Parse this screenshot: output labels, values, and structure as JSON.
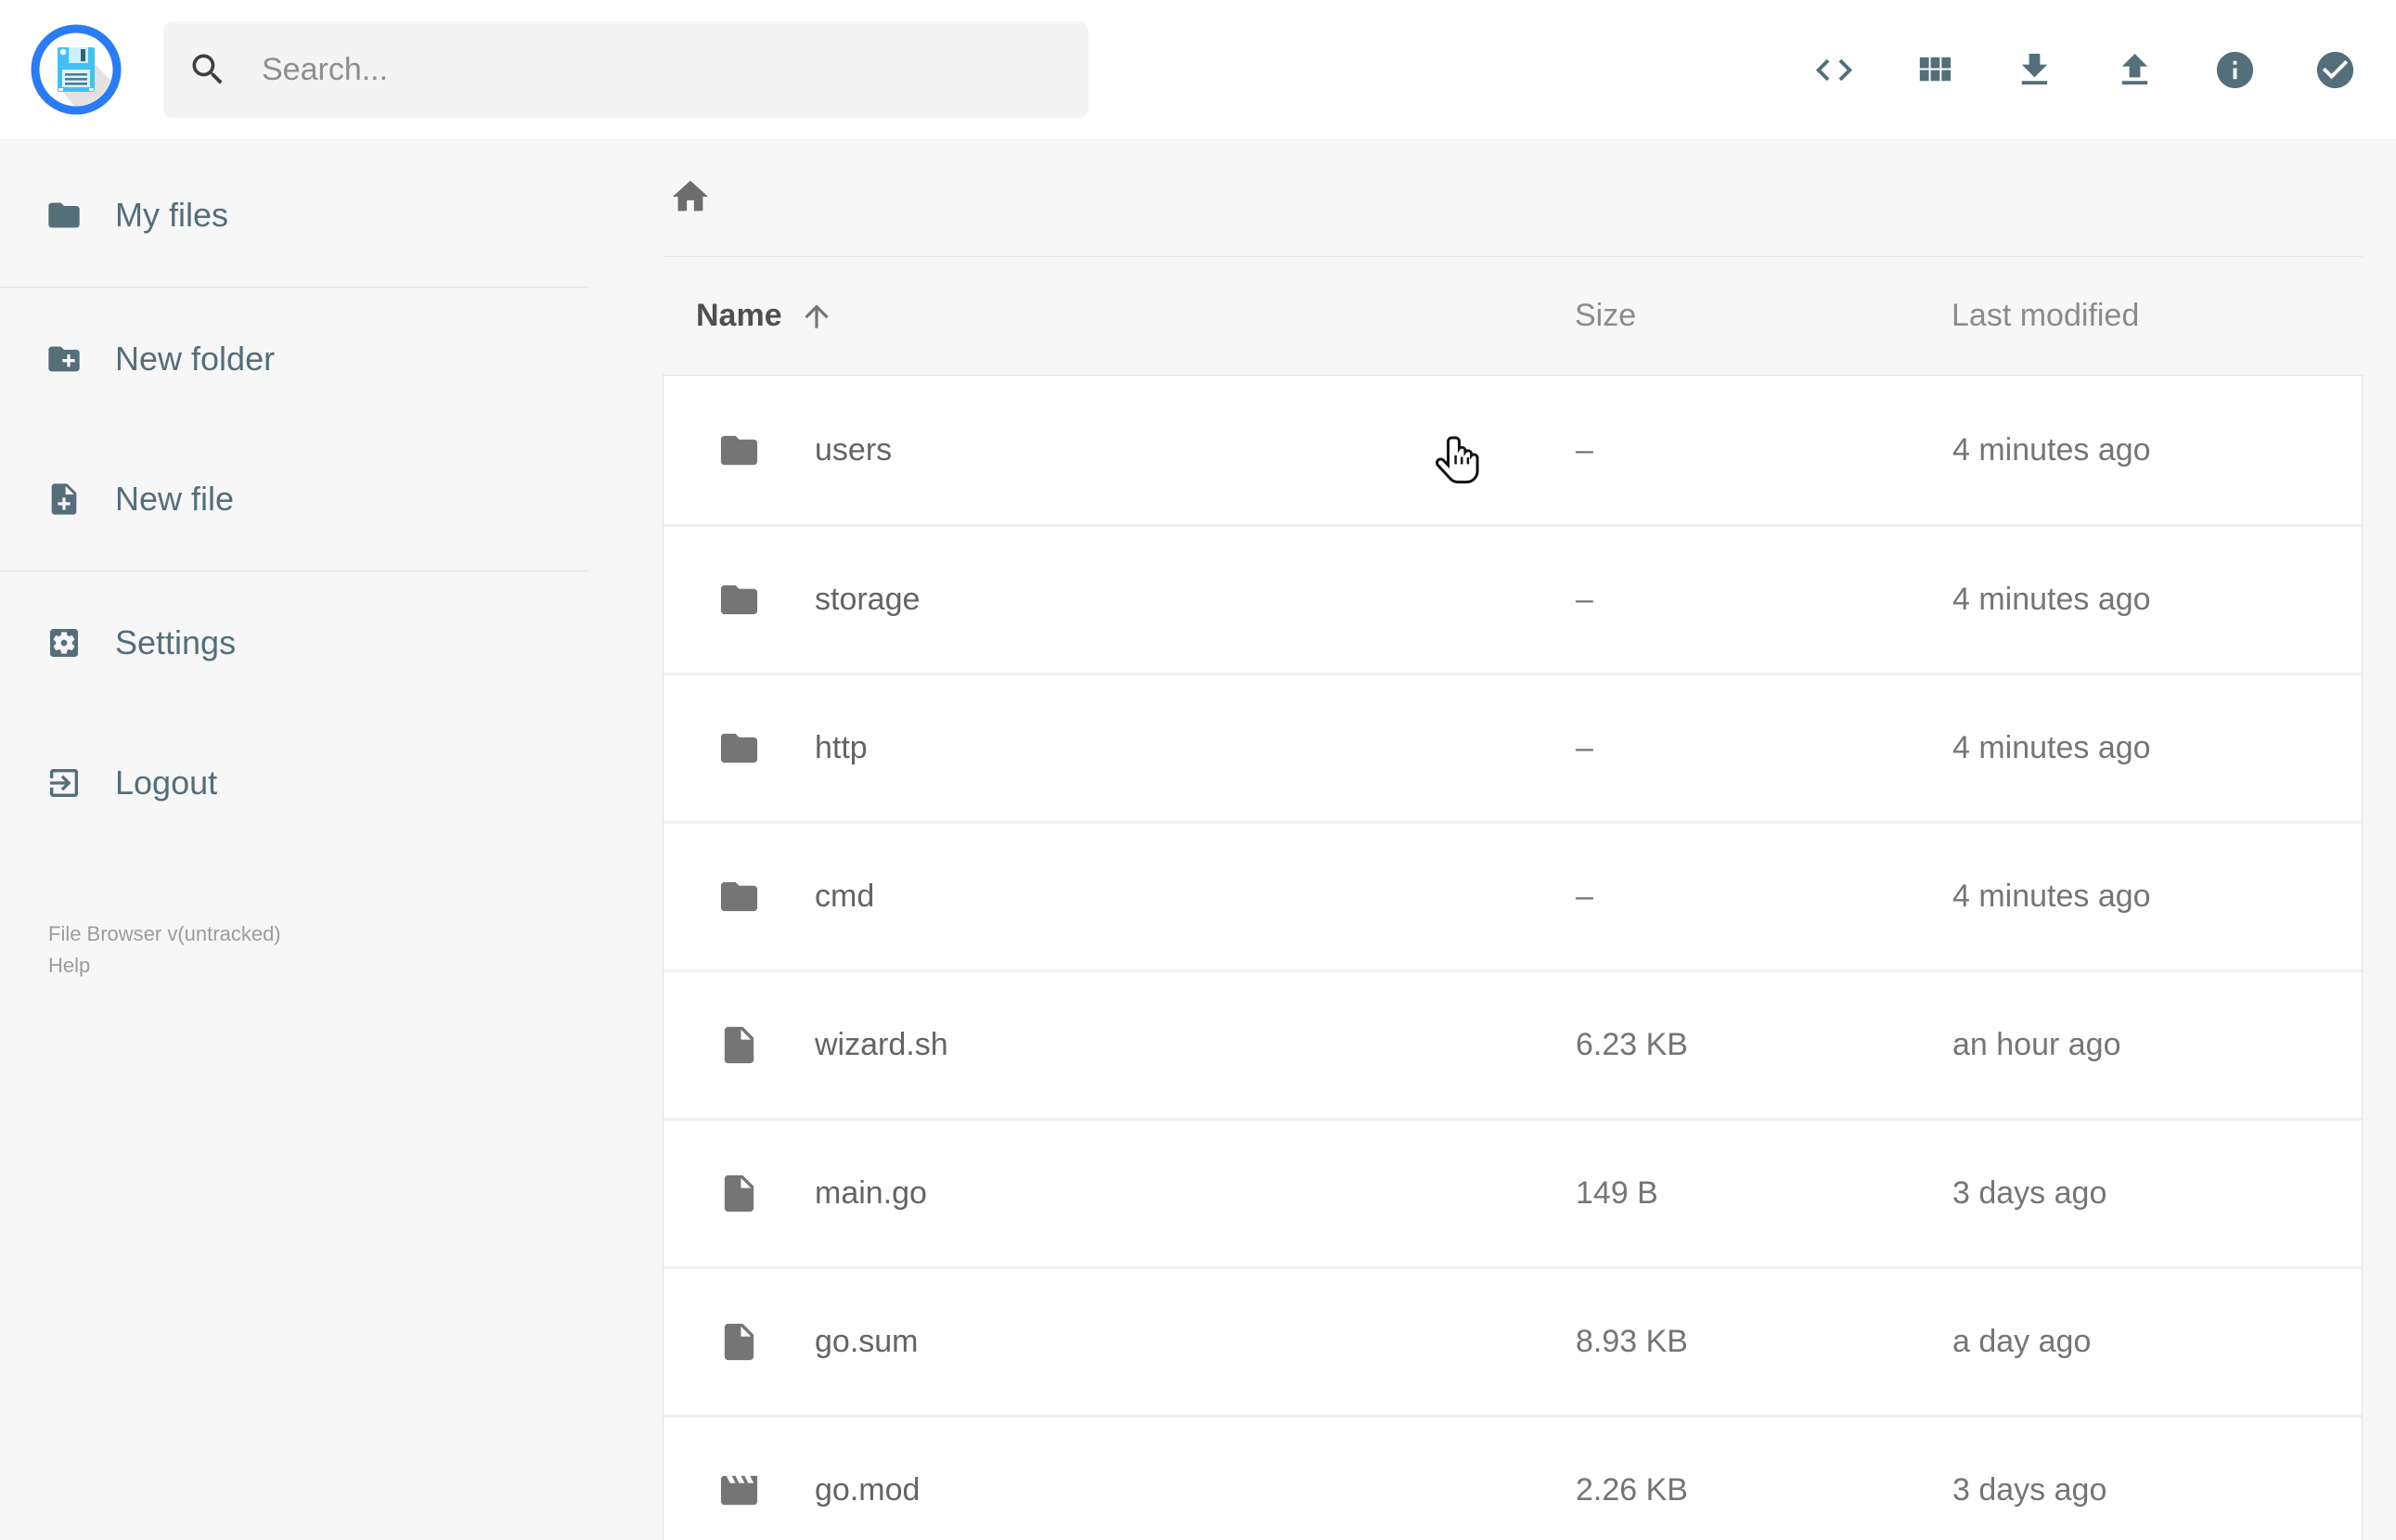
{
  "app": {
    "version_label": "File Browser v(untracked)",
    "help_label": "Help"
  },
  "header": {
    "logo_icon": "floppy-disk-logo",
    "search": {
      "placeholder": "Search...",
      "icon": "search-icon"
    },
    "actions": [
      {
        "id": "raw-view",
        "icon": "code-icon"
      },
      {
        "id": "switch-view",
        "icon": "grid-icon"
      },
      {
        "id": "download",
        "icon": "download-icon"
      },
      {
        "id": "upload",
        "icon": "upload-icon"
      },
      {
        "id": "info",
        "icon": "info-icon"
      },
      {
        "id": "select-multiple",
        "icon": "check-circle-icon"
      }
    ]
  },
  "sidebar": {
    "items": [
      {
        "id": "my-files",
        "label": "My files",
        "icon": "folder-icon"
      },
      {
        "id": "new-folder",
        "label": "New folder",
        "icon": "new-folder-icon"
      },
      {
        "id": "new-file",
        "label": "New file",
        "icon": "new-file-icon"
      },
      {
        "id": "settings",
        "label": "Settings",
        "icon": "settings-icon"
      },
      {
        "id": "logout",
        "label": "Logout",
        "icon": "logout-icon"
      }
    ]
  },
  "breadcrumb": {
    "home_icon": "home-icon"
  },
  "listing": {
    "columns": {
      "name": "Name",
      "size": "Size",
      "modified": "Last modified"
    },
    "sort": {
      "column": "name",
      "direction": "asc",
      "icon": "sort-asc-icon"
    },
    "rows": [
      {
        "type": "folder",
        "icon": "folder-icon",
        "name": "users",
        "size": "–",
        "modified": "4 minutes ago"
      },
      {
        "type": "folder",
        "icon": "folder-icon",
        "name": "storage",
        "size": "–",
        "modified": "4 minutes ago"
      },
      {
        "type": "folder",
        "icon": "folder-icon",
        "name": "http",
        "size": "–",
        "modified": "4 minutes ago"
      },
      {
        "type": "folder",
        "icon": "folder-icon",
        "name": "cmd",
        "size": "–",
        "modified": "4 minutes ago"
      },
      {
        "type": "file",
        "icon": "file-icon",
        "name": "wizard.sh",
        "size": "6.23 KB",
        "modified": "an hour ago"
      },
      {
        "type": "file",
        "icon": "file-icon",
        "name": "main.go",
        "size": "149 B",
        "modified": "3 days ago"
      },
      {
        "type": "file",
        "icon": "file-icon",
        "name": "go.sum",
        "size": "8.93 KB",
        "modified": "a day ago"
      },
      {
        "type": "file",
        "icon": "movie-icon",
        "name": "go.mod",
        "size": "2.26 KB",
        "modified": "3 days ago"
      }
    ]
  },
  "colors": {
    "accent_slate": "#546e7a",
    "logo_blue": "#2a7bf6",
    "logo_light_blue": "#41c0f5",
    "icon_gray": "#757575",
    "row_separator": "#f0f0f0"
  }
}
